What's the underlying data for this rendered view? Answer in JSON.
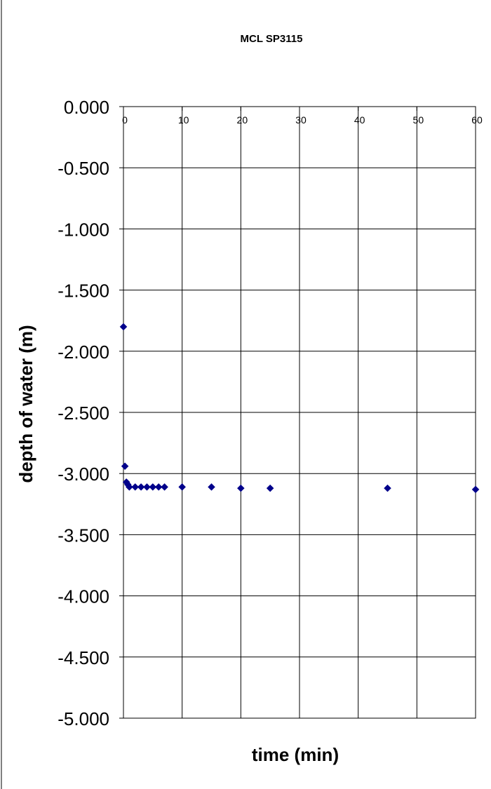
{
  "chart_data": {
    "type": "scatter",
    "title": "MCL SP3115",
    "xlabel": "time (min)",
    "ylabel": "depth of water (m)",
    "xlim": [
      0,
      60
    ],
    "ylim": [
      -5.0,
      0.0
    ],
    "x_ticks": [
      "0",
      "10",
      "20",
      "30",
      "40",
      "50",
      "60"
    ],
    "y_ticks": [
      "0.000",
      "-0.500",
      "-1.000",
      "-1.500",
      "-2.000",
      "-2.500",
      "-3.000",
      "-3.500",
      "-4.000",
      "-4.500",
      "-5.000"
    ],
    "x_tick_values": [
      0,
      10,
      20,
      30,
      40,
      50,
      60
    ],
    "y_tick_values": [
      0,
      -0.5,
      -1.0,
      -1.5,
      -2.0,
      -2.5,
      -3.0,
      -3.5,
      -4.0,
      -4.5,
      -5.0
    ],
    "grid": true,
    "marker": "diamond",
    "marker_color": "#00008B",
    "points": [
      {
        "x": 0,
        "y": -1.8
      },
      {
        "x": 0.25,
        "y": -2.94
      },
      {
        "x": 0.5,
        "y": -3.07
      },
      {
        "x": 0.75,
        "y": -3.09
      },
      {
        "x": 1,
        "y": -3.11
      },
      {
        "x": 2,
        "y": -3.11
      },
      {
        "x": 3,
        "y": -3.11
      },
      {
        "x": 4,
        "y": -3.11
      },
      {
        "x": 5,
        "y": -3.11
      },
      {
        "x": 6,
        "y": -3.11
      },
      {
        "x": 7,
        "y": -3.11
      },
      {
        "x": 10,
        "y": -3.11
      },
      {
        "x": 15,
        "y": -3.11
      },
      {
        "x": 20,
        "y": -3.12
      },
      {
        "x": 25,
        "y": -3.12
      },
      {
        "x": 45,
        "y": -3.12
      },
      {
        "x": 60,
        "y": -3.13
      }
    ]
  }
}
